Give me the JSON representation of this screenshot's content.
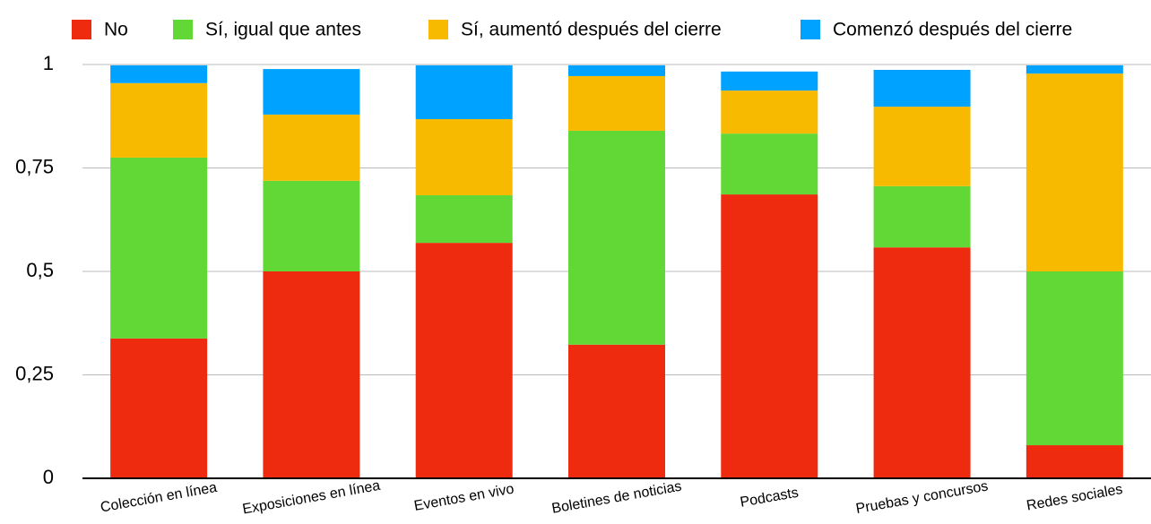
{
  "chart_data": {
    "type": "stacked_bar",
    "categories": [
      "Colección en línea",
      "Exposiciones en línea",
      "Eventos en vivo",
      "Boletines de noticias",
      "Podcasts",
      "Pruebas y concursos",
      "Redes sociales"
    ],
    "series": [
      {
        "name": "No",
        "color": "#ee2a0f",
        "values": [
          0.338,
          0.5,
          0.569,
          0.323,
          0.686,
          0.558,
          0.08
        ]
      },
      {
        "name": "Sí, igual que antes",
        "color": "#61d836",
        "values": [
          0.437,
          0.219,
          0.115,
          0.517,
          0.147,
          0.148,
          0.42
        ]
      },
      {
        "name": "Sí, aumentó después del cierre",
        "color": "#f8ba00",
        "values": [
          0.18,
          0.16,
          0.184,
          0.132,
          0.104,
          0.192,
          0.478
        ]
      },
      {
        "name": "Comenzó después del cierre",
        "color": "#00a2ff",
        "values": [
          0.043,
          0.11,
          0.13,
          0.026,
          0.046,
          0.089,
          0.02
        ]
      }
    ],
    "ylim": [
      0,
      1
    ],
    "yticks": [
      0,
      {
        "value": 0.25,
        "label": "0,25"
      },
      {
        "value": 0.5,
        "label": "0,5"
      },
      {
        "value": 0.75,
        "label": "0,75"
      },
      1
    ],
    "grid": true,
    "legend": "top"
  }
}
